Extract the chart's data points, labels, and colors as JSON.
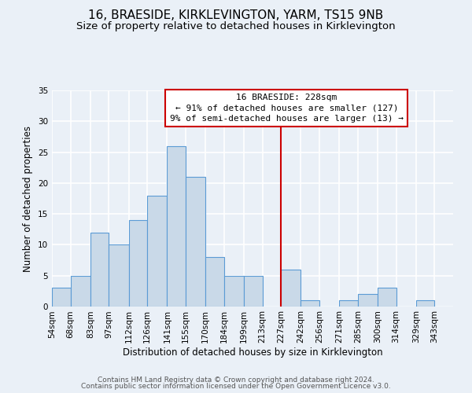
{
  "title": "16, BRAESIDE, KIRKLEVINGTON, YARM, TS15 9NB",
  "subtitle": "Size of property relative to detached houses in Kirklevington",
  "xlabel": "Distribution of detached houses by size in Kirklevington",
  "ylabel": "Number of detached properties",
  "bin_labels": [
    "54sqm",
    "68sqm",
    "83sqm",
    "97sqm",
    "112sqm",
    "126sqm",
    "141sqm",
    "155sqm",
    "170sqm",
    "184sqm",
    "199sqm",
    "213sqm",
    "227sqm",
    "242sqm",
    "256sqm",
    "271sqm",
    "285sqm",
    "300sqm",
    "314sqm",
    "329sqm",
    "343sqm"
  ],
  "bar_values": [
    3,
    5,
    12,
    10,
    14,
    18,
    26,
    21,
    8,
    5,
    5,
    0,
    6,
    1,
    0,
    1,
    2,
    3,
    0,
    1,
    0
  ],
  "bin_edges": [
    54,
    68,
    83,
    97,
    112,
    126,
    141,
    155,
    170,
    184,
    199,
    213,
    227,
    242,
    256,
    271,
    285,
    300,
    314,
    329,
    343,
    357
  ],
  "bar_color": "#c9d9e8",
  "bar_edge_color": "#5b9bd5",
  "vline_x": 227,
  "vline_color": "#cc0000",
  "ylim": [
    0,
    35
  ],
  "yticks": [
    0,
    5,
    10,
    15,
    20,
    25,
    30,
    35
  ],
  "annotation_title": "16 BRAESIDE: 228sqm",
  "annotation_line1": "← 91% of detached houses are smaller (127)",
  "annotation_line2": "9% of semi-detached houses are larger (13) →",
  "annotation_box_color": "#ffffff",
  "annotation_border_color": "#cc0000",
  "footer_line1": "Contains HM Land Registry data © Crown copyright and database right 2024.",
  "footer_line2": "Contains public sector information licensed under the Open Government Licence v3.0.",
  "background_color": "#eaf0f7",
  "plot_background_color": "#eaf0f7",
  "grid_color": "#ffffff",
  "title_fontsize": 11,
  "subtitle_fontsize": 9.5,
  "axis_fontsize": 8.5,
  "tick_fontsize": 7.5,
  "footer_fontsize": 6.5
}
